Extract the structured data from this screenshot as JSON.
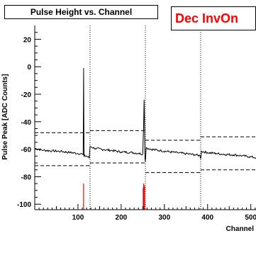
{
  "header": {
    "title": "Pulse Height vs. Channel",
    "tag": "Dec InvOn",
    "tag_color": "#ff0000"
  },
  "chart_data": {
    "type": "line",
    "title": "Pulse Height vs. Channel",
    "xlabel": "Channel",
    "ylabel": "Pulse Peak [ADC Counts]",
    "xlim": [
      0,
      512
    ],
    "ylim": [
      -104,
      30
    ],
    "x_ticks": [
      100,
      200,
      300,
      400,
      500
    ],
    "y_ticks": [
      20,
      0,
      -20,
      -40,
      -60,
      -80,
      -100
    ],
    "grid": false,
    "colors": {
      "trace": "#000000",
      "spikes": "#ff0000"
    },
    "dividers": [
      128,
      256,
      384
    ],
    "series": [
      {
        "values": [
          [
            0,
            -59.5
          ],
          [
            20,
            -60.8
          ],
          [
            40,
            -61.2
          ],
          [
            60,
            -61.6
          ],
          [
            80,
            -62.3
          ],
          [
            100,
            -63.1
          ],
          [
            110,
            -63.5
          ],
          [
            112,
            -64.0
          ],
          [
            113,
            -1.0
          ],
          [
            114,
            -65.0
          ],
          [
            120,
            -65.0
          ],
          [
            126,
            -66.3
          ],
          [
            128,
            -58.0
          ],
          [
            140,
            -59.5
          ],
          [
            160,
            -60.3
          ],
          [
            180,
            -61.0
          ],
          [
            200,
            -62.0
          ],
          [
            220,
            -62.3
          ],
          [
            240,
            -63.0
          ],
          [
            250,
            -63.5
          ],
          [
            252,
            -41.0
          ],
          [
            253,
            -24.0
          ],
          [
            254,
            -39.0
          ],
          [
            255,
            -66.5
          ],
          [
            256,
            -69.0
          ],
          [
            258,
            -59.0
          ],
          [
            270,
            -60.1
          ],
          [
            290,
            -61.0
          ],
          [
            310,
            -61.8
          ],
          [
            330,
            -62.6
          ],
          [
            350,
            -63.3
          ],
          [
            370,
            -64.0
          ],
          [
            382,
            -64.6
          ],
          [
            384,
            -67.0
          ],
          [
            386,
            -61.5
          ],
          [
            400,
            -62.5
          ],
          [
            420,
            -63.1
          ],
          [
            440,
            -63.8
          ],
          [
            460,
            -64.1
          ],
          [
            480,
            -64.8
          ],
          [
            500,
            -65.6
          ],
          [
            512,
            -66.2
          ]
        ]
      }
    ],
    "bands": [
      {
        "x": [
          0,
          128
        ],
        "upper": -48.0,
        "lower": -72.0
      },
      {
        "x": [
          128,
          256
        ],
        "upper": -46.5,
        "lower": -70.0
      },
      {
        "x": [
          256,
          384
        ],
        "upper": -53.5,
        "lower": -77.0
      },
      {
        "x": [
          384,
          512
        ],
        "upper": -51.0,
        "lower": -75.0
      }
    ],
    "spikes": [
      {
        "x": 113,
        "low": -104,
        "high": -85
      },
      {
        "x": 251,
        "low": -104,
        "high": -88
      },
      {
        "x": 252,
        "low": -104,
        "high": -85
      },
      {
        "x": 253,
        "low": -104,
        "high": -86
      },
      {
        "x": 254,
        "low": -104,
        "high": -87
      }
    ]
  }
}
